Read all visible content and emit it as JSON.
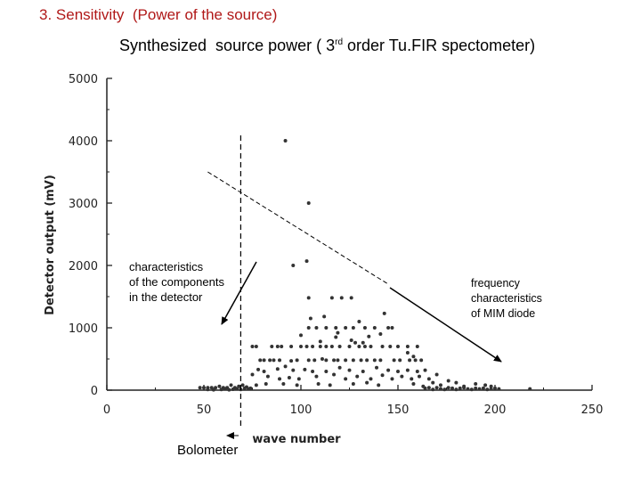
{
  "slide": {
    "title": "3. Sensitivity  (Power of the source)",
    "chart_title_main": "Synthesized  source power ( 3",
    "chart_title_sup": "rd",
    "chart_title_tail": " order Tu.FIR spectometer)"
  },
  "annotations": {
    "left": "characteristics\nof the components\nin the detector",
    "right": "frequency\ncharacteristics\nof MIM diode",
    "bolometer": "Bolometer"
  },
  "chart_data": {
    "type": "scatter",
    "xlabel": "wave  number",
    "ylabel": "Detector output (mV)",
    "xlim": [
      0,
      250
    ],
    "ylim": [
      0,
      5000
    ],
    "x_ticks": [
      "0",
      "50",
      "100",
      "150",
      "200",
      "250"
    ],
    "y_ticks": [
      "0",
      "1000",
      "2000",
      "3000",
      "4000",
      "5000"
    ],
    "grid": false,
    "marker_color": "#333333",
    "vertical_marker_x": 69,
    "trend_line": {
      "x": [
        52,
        145
      ],
      "y": [
        3500,
        1700
      ]
    },
    "points": [
      [
        92,
        4000
      ],
      [
        104,
        3000
      ],
      [
        96,
        2000
      ],
      [
        103,
        2070
      ],
      [
        104,
        1480
      ],
      [
        116,
        1480
      ],
      [
        121,
        1480
      ],
      [
        126,
        1480
      ],
      [
        75,
        700
      ],
      [
        77,
        700
      ],
      [
        85,
        700
      ],
      [
        88,
        700
      ],
      [
        90,
        700
      ],
      [
        95,
        700
      ],
      [
        100,
        700
      ],
      [
        103,
        700
      ],
      [
        106,
        700
      ],
      [
        110,
        700
      ],
      [
        113,
        700
      ],
      [
        116,
        700
      ],
      [
        120,
        700
      ],
      [
        125,
        700
      ],
      [
        130,
        700
      ],
      [
        133,
        700
      ],
      [
        136,
        700
      ],
      [
        142,
        700
      ],
      [
        146,
        700
      ],
      [
        150,
        700
      ],
      [
        155,
        700
      ],
      [
        160,
        700
      ],
      [
        104,
        1000
      ],
      [
        108,
        1000
      ],
      [
        113,
        1000
      ],
      [
        118,
        1000
      ],
      [
        123,
        1000
      ],
      [
        127,
        1000
      ],
      [
        133,
        1000
      ],
      [
        138,
        1000
      ],
      [
        145,
        1000
      ],
      [
        147,
        1000
      ],
      [
        105,
        1150
      ],
      [
        112,
        1180
      ],
      [
        130,
        1100
      ],
      [
        143,
        1230
      ],
      [
        135,
        860
      ],
      [
        118,
        850
      ],
      [
        100,
        880
      ],
      [
        126,
        800
      ],
      [
        110,
        780
      ],
      [
        128,
        760
      ],
      [
        132,
        760
      ],
      [
        119,
        920
      ],
      [
        141,
        900
      ],
      [
        155,
        600
      ],
      [
        158,
        540
      ],
      [
        79,
        480
      ],
      [
        81,
        480
      ],
      [
        84,
        480
      ],
      [
        86,
        480
      ],
      [
        89,
        480
      ],
      [
        95,
        470
      ],
      [
        98,
        480
      ],
      [
        104,
        480
      ],
      [
        107,
        480
      ],
      [
        111,
        500
      ],
      [
        113,
        480
      ],
      [
        117,
        480
      ],
      [
        119,
        480
      ],
      [
        123,
        480
      ],
      [
        127,
        480
      ],
      [
        131,
        480
      ],
      [
        134,
        480
      ],
      [
        138,
        480
      ],
      [
        141,
        480
      ],
      [
        148,
        480
      ],
      [
        151,
        480
      ],
      [
        156,
        480
      ],
      [
        159,
        480
      ],
      [
        162,
        480
      ],
      [
        78,
        330
      ],
      [
        81,
        300
      ],
      [
        88,
        340
      ],
      [
        92,
        380
      ],
      [
        96,
        320
      ],
      [
        102,
        330
      ],
      [
        106,
        300
      ],
      [
        113,
        300
      ],
      [
        120,
        360
      ],
      [
        125,
        320
      ],
      [
        132,
        300
      ],
      [
        139,
        360
      ],
      [
        145,
        320
      ],
      [
        150,
        300
      ],
      [
        155,
        320
      ],
      [
        160,
        300
      ],
      [
        164,
        320
      ],
      [
        170,
        250
      ],
      [
        75,
        250
      ],
      [
        83,
        220
      ],
      [
        89,
        180
      ],
      [
        94,
        200
      ],
      [
        99,
        180
      ],
      [
        108,
        220
      ],
      [
        117,
        250
      ],
      [
        123,
        180
      ],
      [
        129,
        220
      ],
      [
        136,
        180
      ],
      [
        142,
        240
      ],
      [
        147,
        180
      ],
      [
        152,
        220
      ],
      [
        157,
        180
      ],
      [
        161,
        220
      ],
      [
        166,
        180
      ],
      [
        168,
        120
      ],
      [
        77,
        80
      ],
      [
        82,
        100
      ],
      [
        91,
        100
      ],
      [
        98,
        80
      ],
      [
        109,
        100
      ],
      [
        115,
        80
      ],
      [
        127,
        100
      ],
      [
        134,
        120
      ],
      [
        140,
        80
      ],
      [
        158,
        100
      ],
      [
        163,
        60
      ],
      [
        172,
        80
      ],
      [
        176,
        150
      ],
      [
        180,
        120
      ],
      [
        184,
        60
      ],
      [
        190,
        100
      ],
      [
        195,
        80
      ],
      [
        198,
        60
      ],
      [
        48,
        40
      ],
      [
        50,
        40
      ],
      [
        52,
        40
      ],
      [
        54,
        40
      ],
      [
        56,
        40
      ],
      [
        58,
        60
      ],
      [
        60,
        40
      ],
      [
        62,
        40
      ],
      [
        64,
        80
      ],
      [
        66,
        40
      ],
      [
        68,
        60
      ],
      [
        70,
        80
      ],
      [
        72,
        50
      ],
      [
        74,
        30
      ],
      [
        52,
        10
      ],
      [
        55,
        5
      ],
      [
        59,
        10
      ],
      [
        61,
        20
      ],
      [
        63,
        5
      ],
      [
        65,
        15
      ],
      [
        67,
        20
      ],
      [
        69,
        10
      ],
      [
        71,
        30
      ],
      [
        73,
        20
      ],
      [
        164,
        30
      ],
      [
        166,
        40
      ],
      [
        168,
        10
      ],
      [
        170,
        40
      ],
      [
        172,
        20
      ],
      [
        174,
        10
      ],
      [
        176,
        40
      ],
      [
        178,
        30
      ],
      [
        180,
        10
      ],
      [
        182,
        30
      ],
      [
        184,
        40
      ],
      [
        186,
        20
      ],
      [
        188,
        10
      ],
      [
        190,
        30
      ],
      [
        192,
        20
      ],
      [
        194,
        30
      ],
      [
        196,
        10
      ],
      [
        198,
        20
      ],
      [
        200,
        30
      ],
      [
        202,
        20
      ],
      [
        218,
        20
      ]
    ]
  }
}
